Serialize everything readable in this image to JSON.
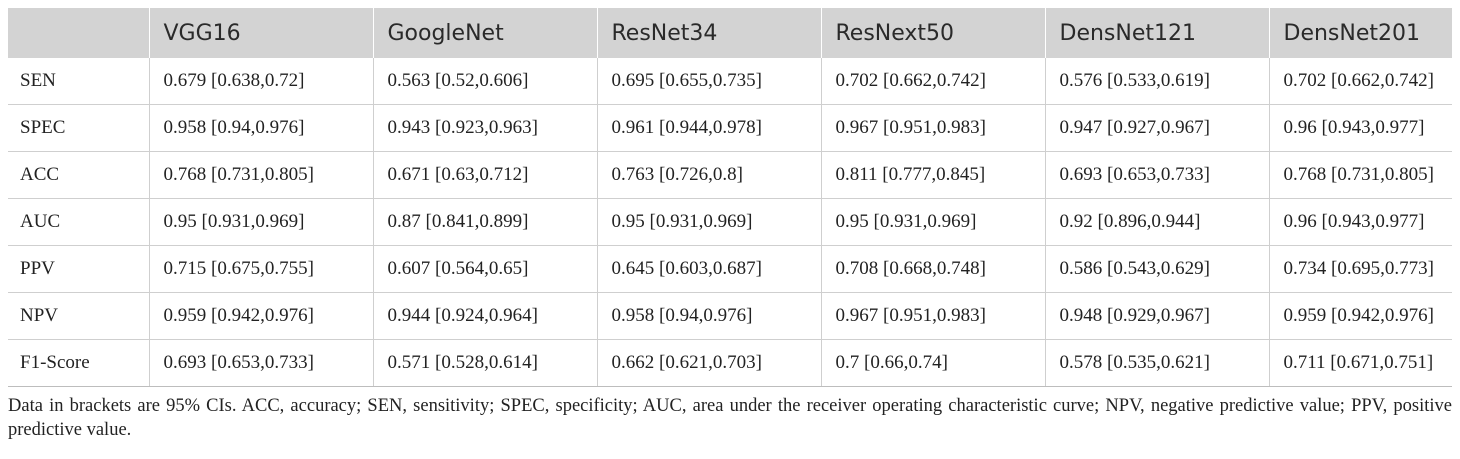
{
  "table": {
    "headers": [
      "",
      "VGG16",
      "GoogleNet",
      "ResNet34",
      "ResNext50",
      "DensNet121",
      "DensNet201"
    ],
    "rows": [
      {
        "label": "SEN",
        "cells": [
          "0.679 [0.638,0.72]",
          "0.563 [0.52,0.606]",
          "0.695 [0.655,0.735]",
          "0.702 [0.662,0.742]",
          "0.576 [0.533,0.619]",
          "0.702 [0.662,0.742]"
        ]
      },
      {
        "label": "SPEC",
        "cells": [
          "0.958 [0.94,0.976]",
          "0.943 [0.923,0.963]",
          "0.961 [0.944,0.978]",
          "0.967 [0.951,0.983]",
          "0.947 [0.927,0.967]",
          "0.96 [0.943,0.977]"
        ]
      },
      {
        "label": "ACC",
        "cells": [
          "0.768 [0.731,0.805]",
          "0.671 [0.63,0.712]",
          "0.763 [0.726,0.8]",
          "0.811 [0.777,0.845]",
          "0.693 [0.653,0.733]",
          "0.768 [0.731,0.805]"
        ]
      },
      {
        "label": "AUC",
        "cells": [
          "0.95 [0.931,0.969]",
          "0.87 [0.841,0.899]",
          "0.95 [0.931,0.969]",
          "0.95 [0.931,0.969]",
          "0.92 [0.896,0.944]",
          "0.96 [0.943,0.977]"
        ]
      },
      {
        "label": "PPV",
        "cells": [
          "0.715 [0.675,0.755]",
          "0.607 [0.564,0.65]",
          "0.645 [0.603,0.687]",
          "0.708 [0.668,0.748]",
          "0.586 [0.543,0.629]",
          "0.734 [0.695,0.773]"
        ]
      },
      {
        "label": "NPV",
        "cells": [
          "0.959 [0.942,0.976]",
          "0.944 [0.924,0.964]",
          "0.958 [0.94,0.976]",
          "0.967 [0.951,0.983]",
          "0.948 [0.929,0.967]",
          "0.959 [0.942,0.976]"
        ]
      },
      {
        "label": "F1-Score",
        "cells": [
          "0.693 [0.653,0.733]",
          "0.571 [0.528,0.614]",
          "0.662 [0.621,0.703]",
          "0.7 [0.66,0.74]",
          "0.578 [0.535,0.621]",
          "0.711 [0.671,0.751]"
        ]
      }
    ]
  },
  "footnote": "Data in brackets are 95% CIs. ACC, accuracy; SEN, sensitivity; SPEC, specificity; AUC, area under the receiver operating characteristic curve; NPV, negative predictive value; PPV, positive predictive value."
}
